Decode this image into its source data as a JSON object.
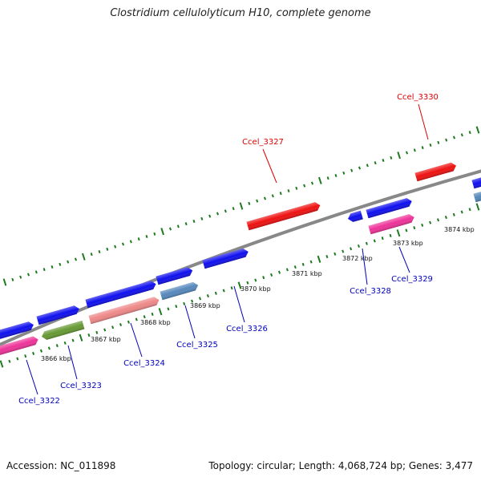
{
  "title": "Clostridium cellulolyticum H10, complete genome",
  "footer": {
    "accession": "Accession: NC_011898",
    "summary": "Topology: circular; Length: 4,068,724 bp; Genes: 3,477"
  },
  "colors": {
    "backbone": "#888888",
    "ticks": "#1e7a1e",
    "red": "#ee1111",
    "blue": "#1010ee",
    "pink": "#ee3399",
    "salmon": "#ee8888",
    "olive": "#669933",
    "steel": "#5588bb",
    "label_red": "#dd0000",
    "label_blue": "#0000bb"
  },
  "ruler": {
    "unit_labels": [
      "3866 kbp",
      "3867 kbp",
      "3868 kbp",
      "3869 kbp",
      "3870 kbp",
      "3871 kbp",
      "3872 kbp",
      "3873 kbp",
      "3874 kbp"
    ]
  },
  "genes_top": [
    {
      "label": "Ccel_3327",
      "color": "red"
    },
    {
      "label": "Ccel_3330",
      "color": "red"
    }
  ],
  "genes_bottom": [
    {
      "label": "Ccel_3322",
      "color": "pink"
    },
    {
      "label": "Ccel_3323",
      "color": "olive"
    },
    {
      "label": "Ccel_3324",
      "color": "salmon"
    },
    {
      "label": "Ccel_3325",
      "color": "steel"
    },
    {
      "label": "Ccel_3326",
      "color": "blue"
    },
    {
      "label": "Ccel_3328",
      "color": "blue"
    },
    {
      "label": "Ccel_3329",
      "color": "pink"
    }
  ]
}
